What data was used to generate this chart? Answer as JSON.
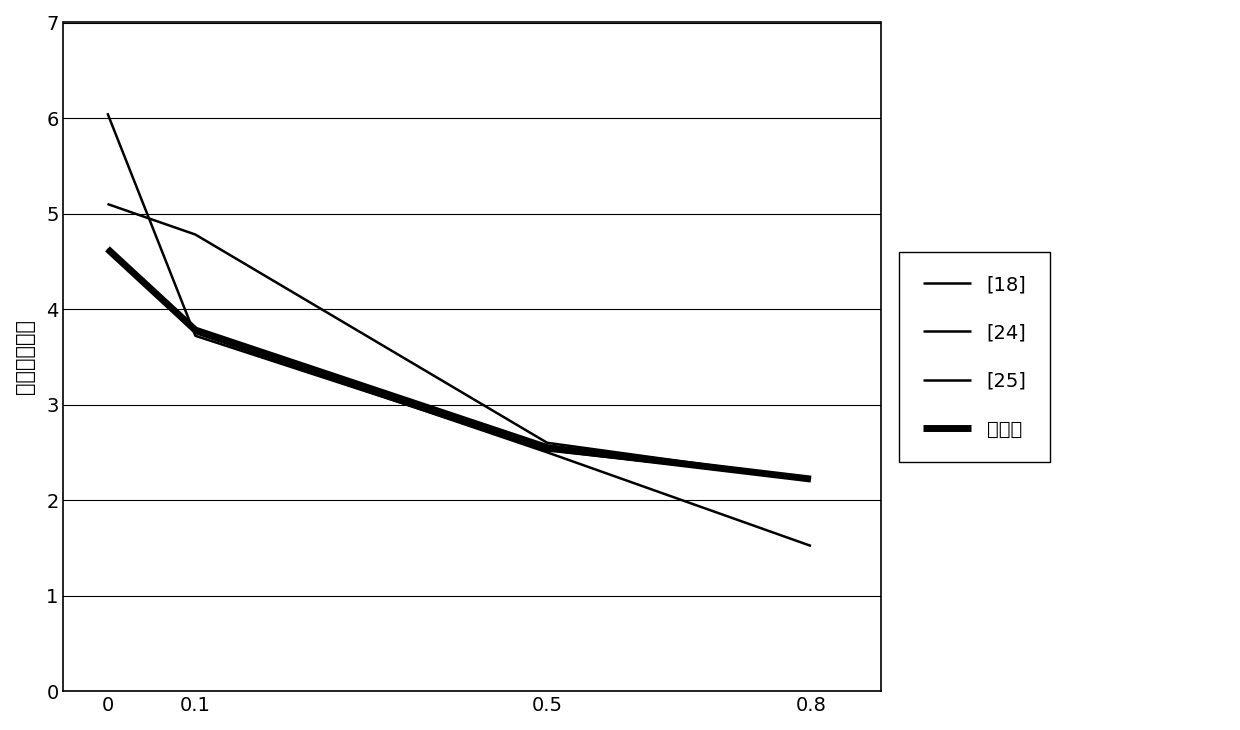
{
  "x_values": [
    0,
    0.1,
    0.5,
    0.8
  ],
  "x_tick_labels": [
    "0",
    "0.1",
    "0.5",
    "0.8"
  ],
  "series": [
    {
      "label": "[18]",
      "y": [
        6.05,
        3.72,
        2.52,
        2.22
      ],
      "linewidth": 1.8,
      "color": "#000000"
    },
    {
      "label": "[24]",
      "y": [
        5.1,
        4.78,
        2.6,
        2.22
      ],
      "linewidth": 1.8,
      "color": "#000000"
    },
    {
      "label": "[25]",
      "y": [
        4.63,
        3.75,
        2.5,
        1.52
      ],
      "linewidth": 1.8,
      "color": "#000000"
    },
    {
      "label": "本发明",
      "y": [
        4.63,
        3.78,
        2.55,
        2.22
      ],
      "linewidth": 5.0,
      "color": "#000000"
    }
  ],
  "ylabel": "时滞稳定裕度",
  "ylim": [
    0,
    7
  ],
  "yticks": [
    0,
    1,
    2,
    3,
    4,
    5,
    6,
    7
  ],
  "background_color": "#ffffff",
  "legend_fontsize": 14,
  "ylabel_fontsize": 15,
  "tick_fontsize": 14,
  "grid_color": "#000000",
  "grid_linewidth": 0.8
}
